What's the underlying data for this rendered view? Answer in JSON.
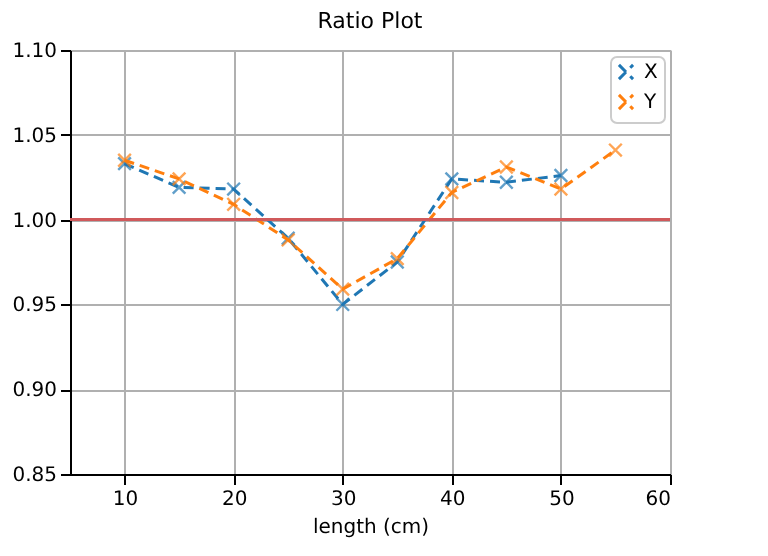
{
  "chart_data": {
    "type": "line",
    "title": "Ratio Plot",
    "xlabel": "length (cm)",
    "x": [
      10,
      15,
      20,
      25,
      30,
      35,
      40,
      45,
      50,
      55
    ],
    "series": [
      {
        "name": "X",
        "color": "#1f77b4",
        "values": [
          1.033,
          1.019,
          1.018,
          0.989,
          0.95,
          0.975,
          1.024,
          1.022,
          1.026,
          null
        ]
      },
      {
        "name": "Y",
        "color": "#ff7f0e",
        "values": [
          1.035,
          1.024,
          1.009,
          0.988,
          0.959,
          0.977,
          1.016,
          1.031,
          1.018,
          1.041
        ]
      }
    ],
    "xlim": [
      5,
      60
    ],
    "xticks": [
      10,
      20,
      30,
      40,
      50,
      60
    ],
    "ylim": [
      0.85,
      1.1
    ],
    "yticks": [
      {
        "value": 0.85,
        "label": "0.85"
      },
      {
        "value": 0.9,
        "label": "0.90"
      },
      {
        "value": 0.95,
        "label": "0.95"
      },
      {
        "value": 1.0,
        "label": "1.00"
      },
      {
        "value": 1.05,
        "label": "1.05"
      },
      {
        "value": 1.1,
        "label": "1.10"
      }
    ],
    "ref_lines": [
      {
        "axis": "y",
        "value": 1.0,
        "color": "#d0595b"
      }
    ],
    "grid": true,
    "legend": "top right",
    "marker": "cross",
    "line_style": "dashed"
  }
}
